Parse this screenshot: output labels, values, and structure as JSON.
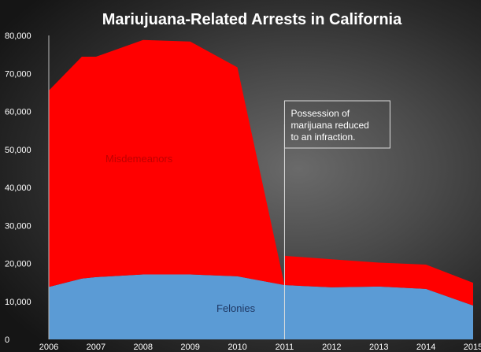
{
  "chart_data": {
    "type": "area",
    "stacked": true,
    "title": "Mariujuana-Related Arrests in California",
    "x": [
      2006,
      2006.7,
      2007,
      2008,
      2009,
      2010,
      2011,
      2012,
      2013,
      2014,
      2015
    ],
    "x_tick_labels": [
      "2006",
      "2007",
      "2008",
      "2009",
      "2010",
      "2011",
      "2012",
      "2013",
      "2014",
      "2015"
    ],
    "ylim": [
      0,
      80000
    ],
    "y_tick_labels": [
      "0",
      "10,000",
      "20,000",
      "30,000",
      "40,000",
      "50,000",
      "60,000",
      "70,000",
      "80,000"
    ],
    "series": [
      {
        "name": "Felonies",
        "color": "#5b9bd5",
        "values": [
          13800,
          16000,
          16400,
          17100,
          17100,
          16600,
          14300,
          13700,
          13900,
          13300,
          8900
        ]
      },
      {
        "name": "Misdemeanors",
        "color": "#ff0000",
        "values": [
          51700,
          58400,
          58000,
          61700,
          61300,
          55000,
          7700,
          7400,
          6300,
          6400,
          6000
        ]
      }
    ],
    "series_break_after_x": 2010,
    "annotation": {
      "lines": [
        "Possession of",
        "marijuana reduced",
        "to an infraction."
      ],
      "x": 2011
    }
  }
}
